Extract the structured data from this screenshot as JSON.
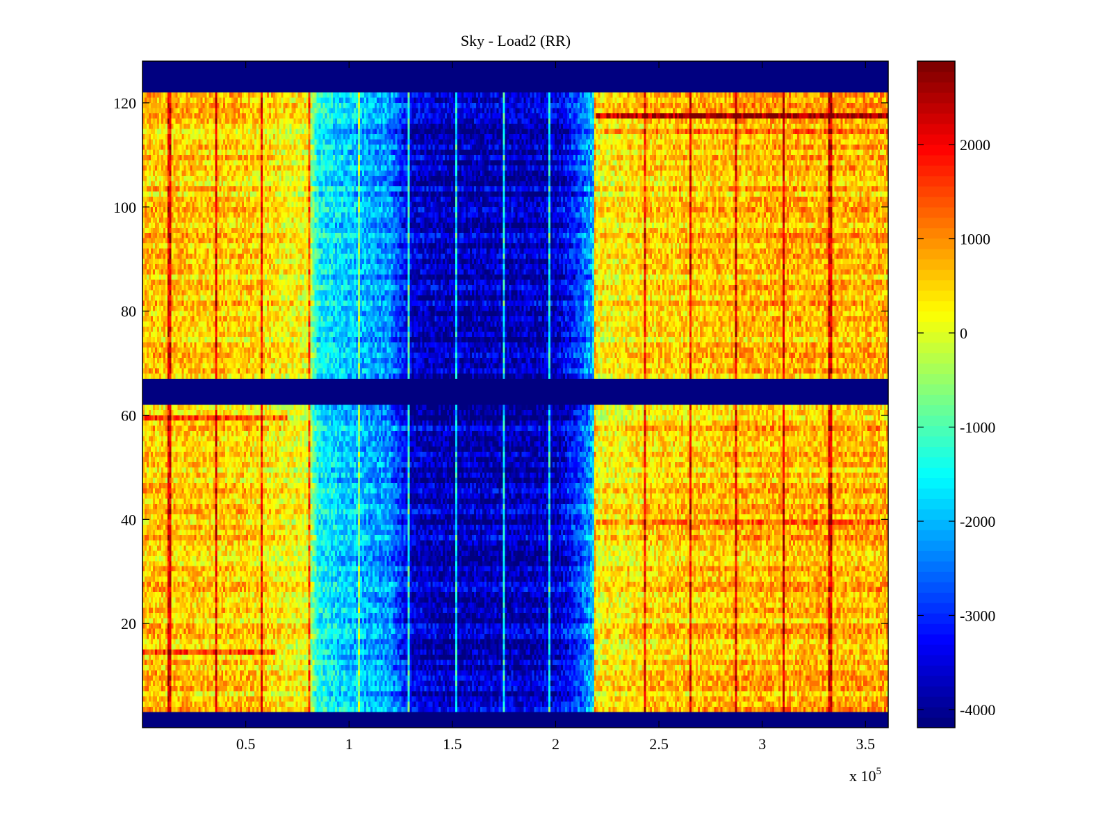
{
  "chart_data": {
    "type": "heatmap",
    "title": "Sky - Load2 (RR)",
    "xlabel": "",
    "ylabel": "",
    "x_multiplier_label": "x 10",
    "x_multiplier_exponent": "5",
    "xlim": [
      0,
      3.61
    ],
    "ylim": [
      0,
      128
    ],
    "x_ticks": [
      0.5,
      1,
      1.5,
      2,
      2.5,
      3,
      3.5
    ],
    "x_tick_labels": [
      "0.5",
      "1",
      "1.5",
      "2",
      "2.5",
      "3",
      "3.5"
    ],
    "y_ticks": [
      20,
      40,
      60,
      80,
      100,
      120
    ],
    "y_tick_labels": [
      "20",
      "40",
      "60",
      "80",
      "100",
      "120"
    ],
    "colormap": "jet",
    "clim": [
      -4192,
      2886
    ],
    "colorbar_ticks": [
      2000,
      1000,
      0,
      -1000,
      -2000,
      -3000,
      -4000
    ],
    "colorbar_tick_labels": [
      "2000",
      "1000",
      "0",
      "-1000",
      "-2000",
      "-3000",
      "-4000"
    ],
    "colorbar_location": "right",
    "grid": false,
    "blank_row_bands": [
      [
        0,
        3
      ],
      [
        61.5,
        67.5
      ],
      [
        121.5,
        128
      ]
    ],
    "column_profile": {
      "description_x": [
        0,
        0.5,
        0.8,
        0.85,
        1.0,
        1.2,
        1.3,
        1.5,
        2.0,
        2.1,
        2.18,
        2.2,
        2.5,
        3.0,
        3.61
      ],
      "mean_value": [
        600,
        500,
        100,
        -1500,
        -1900,
        -2300,
        -3600,
        -3800,
        -3700,
        -3000,
        -2000,
        200,
        500,
        700,
        700
      ]
    },
    "bright_vertical_lines_x": [
      1.29,
      1.52,
      1.75,
      1.97
    ],
    "dark_vertical_lines_x": [
      0.13,
      0.36,
      0.58,
      0.81,
      1.05,
      2.19,
      2.43,
      2.65,
      2.87,
      3.1,
      3.33
    ],
    "strong_rows": [
      {
        "row": 117,
        "x_range": [
          2.2,
          3.61
        ],
        "delta": 1800
      },
      {
        "row": 114,
        "x_range": [
          2.2,
          3.61
        ],
        "delta": 1000
      },
      {
        "row": 59,
        "x_range": [
          0,
          0.7
        ],
        "delta": 1300
      },
      {
        "row": 39,
        "x_range": [
          2.2,
          3.61
        ],
        "delta": 900
      },
      {
        "row": 14,
        "x_range": [
          0,
          0.65
        ],
        "delta": 1000
      }
    ]
  }
}
